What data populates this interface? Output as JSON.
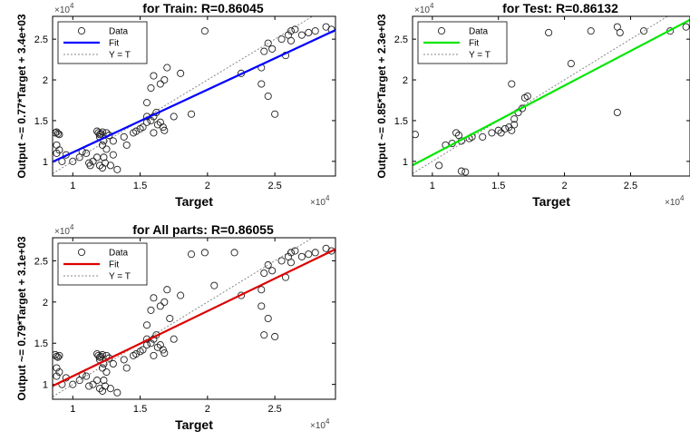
{
  "chart_data": [
    {
      "type": "scatter",
      "title": "for Train: R=0.86045",
      "xlabel": "Target",
      "ylabel": "Output ~= 0.77*Target + 3.4e+03",
      "x_multiplier": "×10",
      "x_multiplier_exp": "4",
      "y_multiplier": "×10",
      "y_multiplier_exp": "4",
      "xlim": [
        0.85,
        2.95
      ],
      "ylim": [
        0.82,
        2.78
      ],
      "xticks": [
        1,
        1.5,
        2,
        2.5
      ],
      "xticklabels": [
        "1",
        "1.5",
        "2",
        "2.5"
      ],
      "yticks": [
        1,
        1.5,
        2,
        2.5
      ],
      "yticklabels": [
        "1",
        "1.5",
        "2",
        "2.5"
      ],
      "fit": {
        "slope": 0.77,
        "intercept": 0.34,
        "color": "#0000ff"
      },
      "identity_line": true,
      "legend": {
        "position": "top-left",
        "entries": [
          "Data",
          "Fit",
          "Y = T"
        ]
      },
      "points": [
        [
          0.88,
          1.36
        ],
        [
          0.89,
          1.34
        ],
        [
          0.9,
          1.33
        ],
        [
          0.87,
          1.35
        ],
        [
          0.88,
          1.2
        ],
        [
          0.9,
          1.14
        ],
        [
          0.88,
          1.1
        ],
        [
          0.92,
          1.0
        ],
        [
          0.95,
          1.08
        ],
        [
          1.0,
          1.0
        ],
        [
          1.05,
          1.05
        ],
        [
          1.07,
          1.12
        ],
        [
          1.1,
          1.1
        ],
        [
          1.12,
          0.98
        ],
        [
          1.13,
          0.95
        ],
        [
          1.15,
          1.0
        ],
        [
          1.18,
          1.05
        ],
        [
          1.18,
          1.37
        ],
        [
          1.19,
          1.35
        ],
        [
          1.2,
          1.33
        ],
        [
          1.21,
          1.34
        ],
        [
          1.22,
          1.36
        ],
        [
          1.2,
          1.3
        ],
        [
          1.22,
          1.2
        ],
        [
          1.23,
          1.25
        ],
        [
          1.25,
          1.35
        ],
        [
          1.27,
          1.32
        ],
        [
          1.25,
          1.15
        ],
        [
          1.23,
          1.05
        ],
        [
          1.2,
          0.95
        ],
        [
          1.22,
          0.92
        ],
        [
          1.24,
          0.98
        ],
        [
          1.28,
          0.95
        ],
        [
          1.3,
          1.25
        ],
        [
          1.3,
          1.08
        ],
        [
          1.33,
          0.9
        ],
        [
          1.38,
          1.3
        ],
        [
          1.4,
          1.2
        ],
        [
          1.45,
          1.35
        ],
        [
          1.47,
          1.37
        ],
        [
          1.5,
          1.4
        ],
        [
          1.52,
          1.42
        ],
        [
          1.55,
          1.48
        ],
        [
          1.55,
          1.55
        ],
        [
          1.58,
          1.5
        ],
        [
          1.6,
          1.55
        ],
        [
          1.62,
          1.6
        ],
        [
          1.63,
          1.45
        ],
        [
          1.65,
          1.48
        ],
        [
          1.67,
          1.42
        ],
        [
          1.68,
          1.38
        ],
        [
          1.6,
          1.35
        ],
        [
          1.55,
          1.72
        ],
        [
          1.58,
          1.9
        ],
        [
          1.6,
          2.05
        ],
        [
          1.65,
          1.95
        ],
        [
          1.68,
          2.0
        ],
        [
          1.7,
          2.15
        ],
        [
          1.75,
          1.55
        ],
        [
          1.8,
          2.08
        ],
        [
          1.88,
          1.58
        ],
        [
          1.98,
          2.6
        ],
        [
          2.25,
          2.08
        ],
        [
          2.4,
          1.95
        ],
        [
          2.45,
          1.8
        ],
        [
          2.5,
          1.58
        ],
        [
          2.4,
          2.15
        ],
        [
          2.42,
          2.35
        ],
        [
          2.45,
          2.45
        ],
        [
          2.48,
          2.38
        ],
        [
          2.55,
          2.5
        ],
        [
          2.58,
          2.3
        ],
        [
          2.6,
          2.55
        ],
        [
          2.62,
          2.6
        ],
        [
          2.62,
          2.48
        ],
        [
          2.65,
          2.62
        ],
        [
          2.7,
          2.55
        ],
        [
          2.75,
          2.58
        ],
        [
          2.8,
          2.6
        ],
        [
          2.88,
          2.65
        ],
        [
          2.92,
          2.62
        ]
      ]
    },
    {
      "type": "scatter",
      "title": "for Test: R=0.86132",
      "xlabel": "Target",
      "ylabel": "Output ~= 0.85*Target + 2.3e+03",
      "x_multiplier": "×10",
      "x_multiplier_exp": "4",
      "y_multiplier": "×10",
      "y_multiplier_exp": "4",
      "xlim": [
        0.85,
        2.95
      ],
      "ylim": [
        0.82,
        2.78
      ],
      "xticks": [
        1,
        1.5,
        2,
        2.5
      ],
      "xticklabels": [
        "1",
        "1.5",
        "2",
        "2.5"
      ],
      "yticks": [
        1,
        1.5,
        2,
        2.5
      ],
      "yticklabels": [
        "1",
        "1.5",
        "2",
        "2.5"
      ],
      "fit": {
        "slope": 0.85,
        "intercept": 0.23,
        "color": "#00e600"
      },
      "identity_line": true,
      "legend": {
        "position": "top-left",
        "entries": [
          "Data",
          "Fit",
          "Y = T"
        ]
      },
      "points": [
        [
          0.87,
          1.33
        ],
        [
          1.05,
          0.95
        ],
        [
          1.1,
          1.2
        ],
        [
          1.15,
          1.22
        ],
        [
          1.18,
          1.35
        ],
        [
          1.2,
          1.32
        ],
        [
          1.22,
          0.88
        ],
        [
          1.25,
          0.87
        ],
        [
          1.22,
          1.25
        ],
        [
          1.28,
          1.28
        ],
        [
          1.3,
          1.3
        ],
        [
          1.38,
          1.3
        ],
        [
          1.45,
          1.35
        ],
        [
          1.5,
          1.38
        ],
        [
          1.52,
          1.35
        ],
        [
          1.55,
          1.4
        ],
        [
          1.58,
          1.42
        ],
        [
          1.6,
          1.38
        ],
        [
          1.62,
          1.45
        ],
        [
          1.62,
          1.52
        ],
        [
          1.65,
          1.6
        ],
        [
          1.68,
          1.65
        ],
        [
          1.7,
          1.78
        ],
        [
          1.72,
          1.8
        ],
        [
          1.6,
          1.95
        ],
        [
          1.88,
          2.58
        ],
        [
          2.05,
          2.2
        ],
        [
          2.2,
          2.6
        ],
        [
          2.4,
          2.65
        ],
        [
          2.42,
          2.58
        ],
        [
          2.4,
          1.6
        ],
        [
          2.6,
          2.6
        ],
        [
          2.8,
          2.6
        ],
        [
          2.92,
          2.65
        ]
      ]
    },
    {
      "type": "scatter",
      "title": "for All parts: R=0.86055",
      "xlabel": "Target",
      "ylabel": "Output ~= 0.79*Target + 3.1e+03",
      "x_multiplier": "×10",
      "x_multiplier_exp": "4",
      "y_multiplier": "×10",
      "y_multiplier_exp": "4",
      "xlim": [
        0.85,
        2.95
      ],
      "ylim": [
        0.82,
        2.78
      ],
      "xticks": [
        1,
        1.5,
        2,
        2.5
      ],
      "xticklabels": [
        "1",
        "1.5",
        "2",
        "2.5"
      ],
      "yticks": [
        1,
        1.5,
        2,
        2.5
      ],
      "yticklabels": [
        "1",
        "1.5",
        "2",
        "2.5"
      ],
      "fit": {
        "slope": 0.79,
        "intercept": 0.31,
        "color": "#dd0000"
      },
      "identity_line": true,
      "legend": {
        "position": "top-left",
        "entries": [
          "Data",
          "Fit",
          "Y = T"
        ]
      },
      "points": [
        [
          0.87,
          1.36
        ],
        [
          0.88,
          1.34
        ],
        [
          0.89,
          1.33
        ],
        [
          0.9,
          1.35
        ],
        [
          0.88,
          1.2
        ],
        [
          0.9,
          1.15
        ],
        [
          0.88,
          1.1
        ],
        [
          0.92,
          1.0
        ],
        [
          0.95,
          1.08
        ],
        [
          1.0,
          1.0
        ],
        [
          1.05,
          1.05
        ],
        [
          1.07,
          1.12
        ],
        [
          1.1,
          1.1
        ],
        [
          1.12,
          0.98
        ],
        [
          1.15,
          1.0
        ],
        [
          1.18,
          1.05
        ],
        [
          1.18,
          1.37
        ],
        [
          1.19,
          1.35
        ],
        [
          1.2,
          1.33
        ],
        [
          1.21,
          1.34
        ],
        [
          1.22,
          1.36
        ],
        [
          1.2,
          1.3
        ],
        [
          1.22,
          1.2
        ],
        [
          1.23,
          1.25
        ],
        [
          1.25,
          1.35
        ],
        [
          1.27,
          1.32
        ],
        [
          1.25,
          1.15
        ],
        [
          1.23,
          1.05
        ],
        [
          1.2,
          0.95
        ],
        [
          1.22,
          0.92
        ],
        [
          1.24,
          0.98
        ],
        [
          1.28,
          0.95
        ],
        [
          1.3,
          1.25
        ],
        [
          1.33,
          0.9
        ],
        [
          1.38,
          1.3
        ],
        [
          1.4,
          1.2
        ],
        [
          1.45,
          1.35
        ],
        [
          1.47,
          1.37
        ],
        [
          1.5,
          1.4
        ],
        [
          1.52,
          1.42
        ],
        [
          1.55,
          1.48
        ],
        [
          1.55,
          1.55
        ],
        [
          1.58,
          1.5
        ],
        [
          1.6,
          1.55
        ],
        [
          1.62,
          1.6
        ],
        [
          1.63,
          1.45
        ],
        [
          1.65,
          1.48
        ],
        [
          1.67,
          1.42
        ],
        [
          1.68,
          1.38
        ],
        [
          1.6,
          1.35
        ],
        [
          1.55,
          1.72
        ],
        [
          1.58,
          1.9
        ],
        [
          1.6,
          2.05
        ],
        [
          1.65,
          1.95
        ],
        [
          1.68,
          2.0
        ],
        [
          1.7,
          2.15
        ],
        [
          1.72,
          1.8
        ],
        [
          1.75,
          1.55
        ],
        [
          1.8,
          2.08
        ],
        [
          1.88,
          2.58
        ],
        [
          1.98,
          2.6
        ],
        [
          2.05,
          2.2
        ],
        [
          2.2,
          2.6
        ],
        [
          2.25,
          2.08
        ],
        [
          2.4,
          1.95
        ],
        [
          2.42,
          1.6
        ],
        [
          2.45,
          1.8
        ],
        [
          2.5,
          1.58
        ],
        [
          2.4,
          2.15
        ],
        [
          2.42,
          2.35
        ],
        [
          2.45,
          2.45
        ],
        [
          2.48,
          2.38
        ],
        [
          2.55,
          2.5
        ],
        [
          2.58,
          2.3
        ],
        [
          2.6,
          2.55
        ],
        [
          2.62,
          2.6
        ],
        [
          2.62,
          2.48
        ],
        [
          2.65,
          2.62
        ],
        [
          2.7,
          2.55
        ],
        [
          2.75,
          2.58
        ],
        [
          2.8,
          2.6
        ],
        [
          2.88,
          2.65
        ],
        [
          2.92,
          2.62
        ]
      ]
    }
  ]
}
